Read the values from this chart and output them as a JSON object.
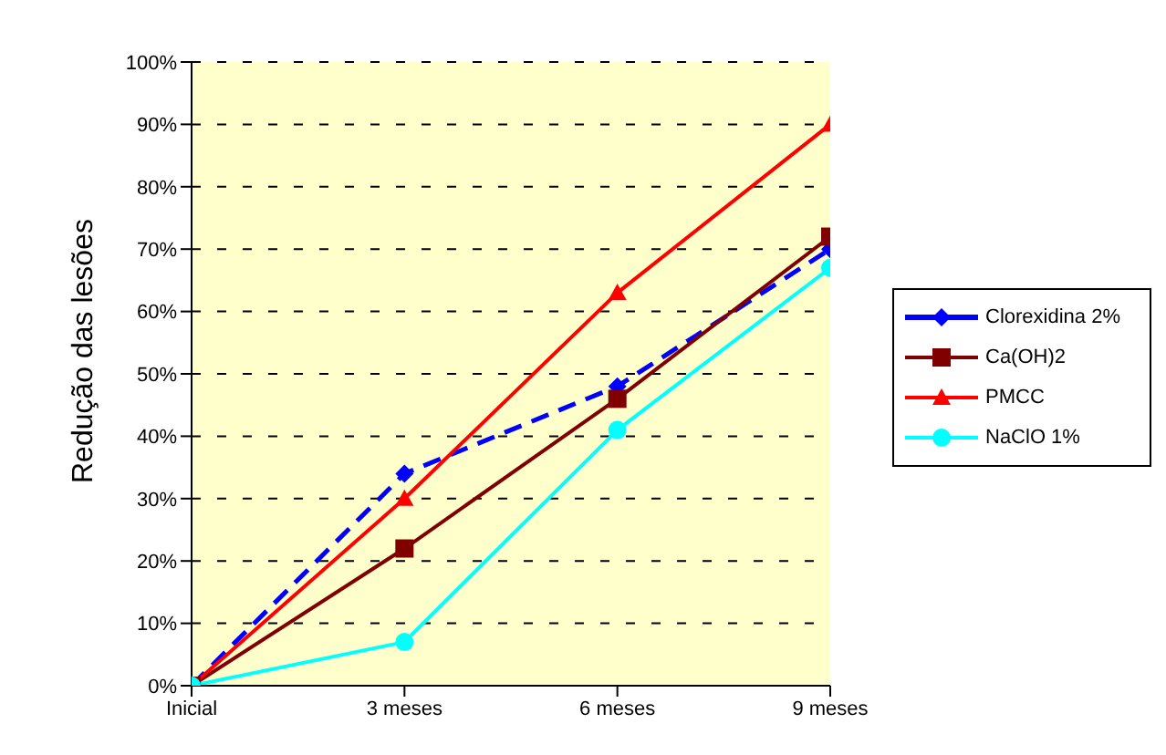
{
  "chart_data": {
    "type": "line",
    "ylabel": "Redução das lesões",
    "categories": [
      "Inicial",
      "3 meses",
      "6 meses",
      "9 meses"
    ],
    "series": [
      {
        "name": "Clorexidina 2%",
        "color": "#0000ff",
        "values": [
          0,
          34,
          48,
          70
        ],
        "marker": "diamond",
        "line_style": "dashed"
      },
      {
        "name": "Ca(OH)2",
        "color": "#800000",
        "values": [
          0,
          22,
          46,
          72
        ],
        "marker": "square",
        "line_style": "solid"
      },
      {
        "name": "PMCC",
        "color": "#ff0000",
        "values": [
          0,
          30,
          63,
          90
        ],
        "marker": "triangle",
        "line_style": "solid"
      },
      {
        "name": "NaClO 1%",
        "color": "#00ffff",
        "values": [
          0,
          7,
          41,
          67
        ],
        "marker": "circle",
        "line_style": "solid"
      }
    ],
    "ylim": [
      0,
      100
    ],
    "yticks": [
      {
        "value": 0,
        "label": "0%"
      },
      {
        "value": 10,
        "label": "10%"
      },
      {
        "value": 20,
        "label": "20%"
      },
      {
        "value": 30,
        "label": "30%"
      },
      {
        "value": 40,
        "label": "40%"
      },
      {
        "value": 50,
        "label": "50%"
      },
      {
        "value": 60,
        "label": "60%"
      },
      {
        "value": 70,
        "label": "70%"
      },
      {
        "value": 80,
        "label": "80%"
      },
      {
        "value": 90,
        "label": "90%"
      },
      {
        "value": 100,
        "label": "100%"
      }
    ],
    "grid": "y",
    "legend": "right"
  }
}
